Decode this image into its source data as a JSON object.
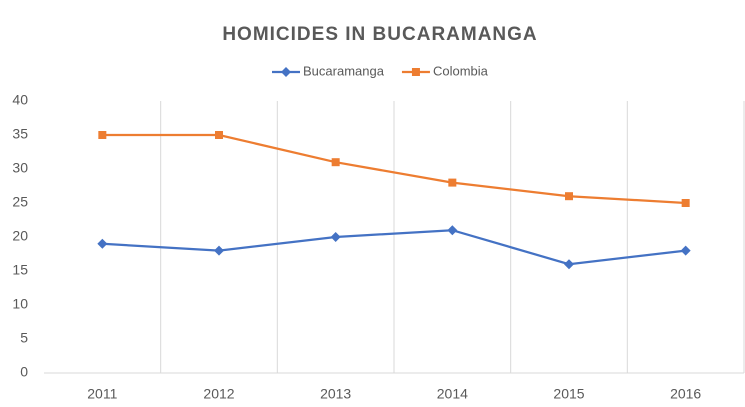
{
  "chart_data": {
    "type": "line",
    "title": "HOMICIDES IN BUCARAMANGA",
    "categories": [
      "2011",
      "2012",
      "2013",
      "2014",
      "2015",
      "2016"
    ],
    "series": [
      {
        "name": "Bucaramanga",
        "color": "#4472c4",
        "marker": "diamond",
        "values": [
          19,
          18,
          20,
          21,
          16,
          18
        ]
      },
      {
        "name": "Colombia",
        "color": "#ed7d31",
        "marker": "square",
        "values": [
          35,
          35,
          31,
          28,
          26,
          25
        ]
      }
    ],
    "ylim": [
      0,
      40
    ],
    "yticks": [
      0,
      5,
      10,
      15,
      20,
      25,
      30,
      35,
      40
    ],
    "grid": "x",
    "legend": "top"
  }
}
